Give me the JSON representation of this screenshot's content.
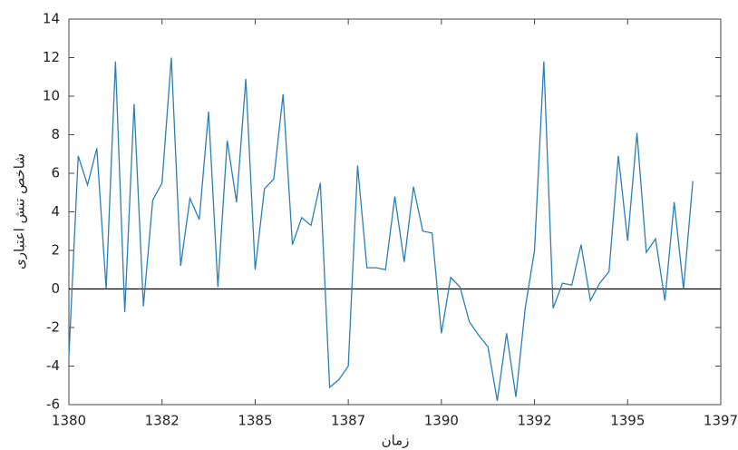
{
  "chart_data": {
    "type": "line",
    "x_label": "زمان",
    "y_label": "شاخص تنش اعتباری",
    "x": [
      0,
      1,
      2,
      3,
      4,
      5,
      6,
      7,
      8,
      9,
      10,
      11,
      12,
      13,
      14,
      15,
      16,
      17,
      18,
      19,
      20,
      21,
      22,
      23,
      24,
      25,
      26,
      27,
      28,
      29,
      30,
      31,
      32,
      33,
      34,
      35,
      36,
      37,
      38,
      39,
      40,
      41,
      42,
      43,
      44,
      45,
      46,
      47,
      48,
      49,
      50,
      51,
      52,
      53,
      54,
      55,
      56,
      57,
      58,
      59,
      60,
      61,
      62,
      63,
      64,
      65,
      66,
      67
    ],
    "series": [
      {
        "color": "#2a7fb5",
        "values": [
          -3.5,
          6.9,
          5.4,
          7.3,
          0,
          11.8,
          -1.2,
          9.6,
          -0.9,
          4.6,
          5.5,
          12,
          1.2,
          4.7,
          3.6,
          9.2,
          0.1,
          7.7,
          4.5,
          10.9,
          1,
          5.2,
          5.7,
          10.1,
          2.3,
          3.7,
          3.3,
          5.5,
          -5.1,
          -4.7,
          -4,
          6.4,
          1.1,
          1.1,
          1,
          4.8,
          1.4,
          5.3,
          3,
          2.9,
          -2.3,
          0.6,
          0.1,
          -1.7,
          -2.4,
          -3,
          -5.8,
          -2.3,
          -5.6,
          -1,
          2,
          11.8,
          -1,
          0.3,
          0.2,
          2.3,
          -0.6,
          0.3,
          0.9,
          6.9,
          2.5,
          8.1,
          1.9,
          2.6,
          -0.6,
          4.5,
          0,
          5.6
        ]
      }
    ],
    "xlim": [
      0,
      70
    ],
    "xticks": [
      {
        "value": 0,
        "label": "1380"
      },
      {
        "value": 10,
        "label": "1382"
      },
      {
        "value": 20,
        "label": "1385"
      },
      {
        "value": 30,
        "label": "1387"
      },
      {
        "value": 40,
        "label": "1390"
      },
      {
        "value": 50,
        "label": "1392"
      },
      {
        "value": 60,
        "label": "1395"
      },
      {
        "value": 70,
        "label": "1397"
      }
    ],
    "ylim": [
      -6,
      14
    ],
    "yticks": [
      -6,
      -4,
      -2,
      0,
      2,
      4,
      6,
      8,
      10,
      12,
      14
    ],
    "reference_line": 0,
    "reference_color": "#000000",
    "grid": false
  }
}
